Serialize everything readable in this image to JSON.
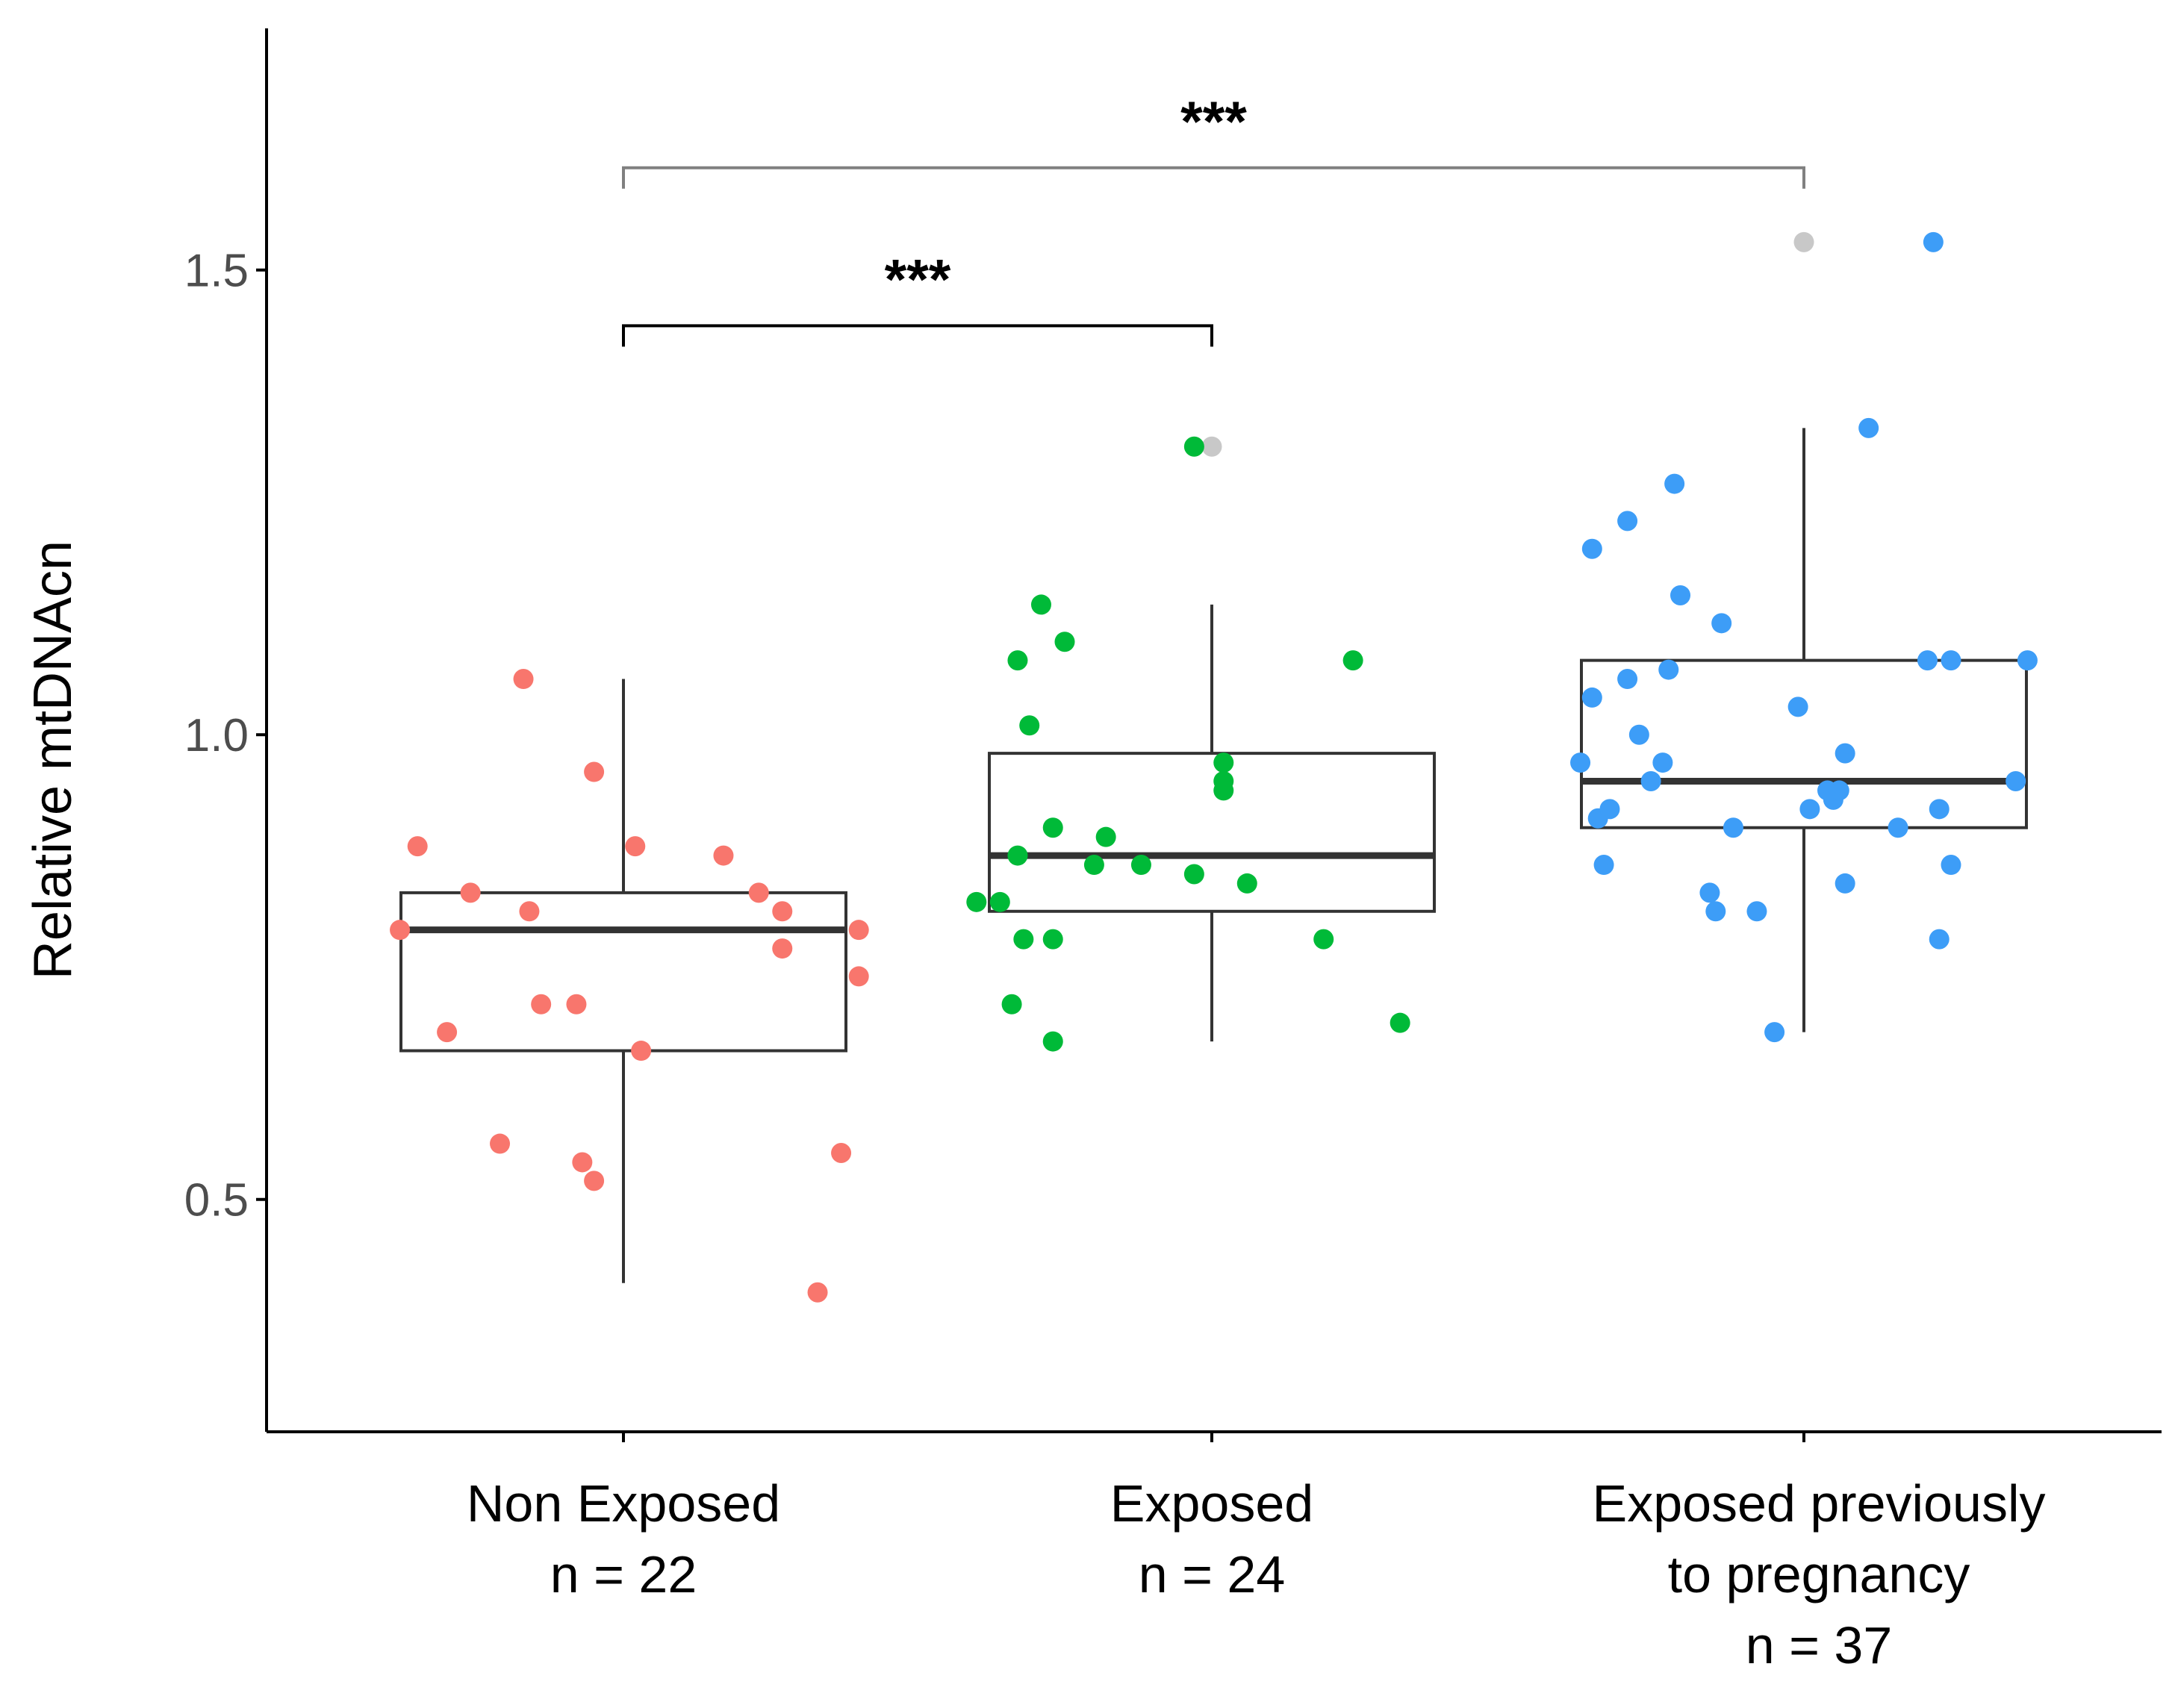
{
  "chart_data": {
    "type": "boxplot",
    "title": "",
    "xlabel": "",
    "ylabel": "Relative mtDNAcn",
    "ylim": [
      0.25,
      1.76
    ],
    "yticks": [
      0.5,
      1.0,
      1.5
    ],
    "ytick_labels": [
      "0.5",
      "1.0",
      "1.5"
    ],
    "grid": false,
    "legend": "none",
    "groups": [
      {
        "name": "Non Exposed",
        "n_label": "n = 22",
        "label_lines": [
          "Non Exposed",
          "n = 22"
        ],
        "color": "#F8766D",
        "box": {
          "q1": 0.66,
          "median": 0.79,
          "q3": 0.83,
          "whisker_low": 0.41,
          "whisker_high": 1.06
        },
        "outliers": [],
        "points": [
          {
            "dx": -0.38,
            "y": 0.79
          },
          {
            "dx": -0.35,
            "y": 0.88
          },
          {
            "dx": -0.3,
            "y": 0.68
          },
          {
            "dx": -0.26,
            "y": 0.83
          },
          {
            "dx": -0.21,
            "y": 0.56
          },
          {
            "dx": -0.16,
            "y": 0.81
          },
          {
            "dx": -0.17,
            "y": 1.06
          },
          {
            "dx": -0.14,
            "y": 0.71
          },
          {
            "dx": -0.08,
            "y": 0.71
          },
          {
            "dx": -0.07,
            "y": 0.54
          },
          {
            "dx": -0.05,
            "y": 0.52
          },
          {
            "dx": -0.05,
            "y": 0.96
          },
          {
            "dx": 0.02,
            "y": 0.88
          },
          {
            "dx": 0.03,
            "y": 0.66
          },
          {
            "dx": 0.17,
            "y": 0.87
          },
          {
            "dx": 0.23,
            "y": 0.83
          },
          {
            "dx": 0.27,
            "y": 0.81
          },
          {
            "dx": 0.27,
            "y": 0.77
          },
          {
            "dx": 0.33,
            "y": 0.4
          },
          {
            "dx": 0.37,
            "y": 0.55
          },
          {
            "dx": 0.4,
            "y": 0.79
          },
          {
            "dx": 0.4,
            "y": 0.74
          }
        ]
      },
      {
        "name": "Exposed",
        "n_label": "n = 24",
        "label_lines": [
          "Exposed",
          "n = 24"
        ],
        "color": "#00BA38",
        "box": {
          "q1": 0.81,
          "median": 0.87,
          "q3": 0.98,
          "whisker_low": 0.67,
          "whisker_high": 1.14
        },
        "outliers": [
          1.31
        ],
        "points": [
          {
            "dx": -0.4,
            "y": 0.82
          },
          {
            "dx": -0.36,
            "y": 0.82
          },
          {
            "dx": -0.34,
            "y": 0.71
          },
          {
            "dx": -0.33,
            "y": 0.87
          },
          {
            "dx": -0.33,
            "y": 1.08
          },
          {
            "dx": -0.32,
            "y": 0.78
          },
          {
            "dx": -0.31,
            "y": 1.01
          },
          {
            "dx": -0.29,
            "y": 1.14
          },
          {
            "dx": -0.27,
            "y": 0.67
          },
          {
            "dx": -0.27,
            "y": 0.9
          },
          {
            "dx": -0.27,
            "y": 0.78
          },
          {
            "dx": -0.25,
            "y": 1.1
          },
          {
            "dx": -0.2,
            "y": 0.86
          },
          {
            "dx": -0.18,
            "y": 0.89
          },
          {
            "dx": -0.12,
            "y": 0.86
          },
          {
            "dx": -0.03,
            "y": 0.85
          },
          {
            "dx": -0.03,
            "y": 1.31
          },
          {
            "dx": 0.02,
            "y": 0.95
          },
          {
            "dx": 0.02,
            "y": 0.94
          },
          {
            "dx": 0.02,
            "y": 0.97
          },
          {
            "dx": 0.06,
            "y": 0.84
          },
          {
            "dx": 0.19,
            "y": 0.78
          },
          {
            "dx": 0.24,
            "y": 1.08
          },
          {
            "dx": 0.32,
            "y": 0.69
          }
        ]
      },
      {
        "name": "Exposed previously to pregnancy",
        "n_label": "n = 37",
        "label_lines": [
          "Exposed previously",
          "to pregnancy",
          "n = 37"
        ],
        "color": "#3D9DF7",
        "box": {
          "q1": 0.9,
          "median": 0.95,
          "q3": 1.08,
          "whisker_low": 0.68,
          "whisker_high": 1.33
        },
        "outliers": [
          1.53
        ],
        "points": [
          {
            "dx": -0.38,
            "y": 0.97
          },
          {
            "dx": -0.36,
            "y": 1.2
          },
          {
            "dx": -0.36,
            "y": 1.04
          },
          {
            "dx": -0.35,
            "y": 0.91
          },
          {
            "dx": -0.34,
            "y": 0.86
          },
          {
            "dx": -0.33,
            "y": 0.92
          },
          {
            "dx": -0.3,
            "y": 1.23
          },
          {
            "dx": -0.3,
            "y": 1.06
          },
          {
            "dx": -0.28,
            "y": 1.0
          },
          {
            "dx": -0.26,
            "y": 0.95
          },
          {
            "dx": -0.24,
            "y": 0.97
          },
          {
            "dx": -0.23,
            "y": 1.07
          },
          {
            "dx": -0.22,
            "y": 1.27
          },
          {
            "dx": -0.21,
            "y": 1.15
          },
          {
            "dx": -0.16,
            "y": 0.83
          },
          {
            "dx": -0.15,
            "y": 0.81
          },
          {
            "dx": -0.14,
            "y": 1.12
          },
          {
            "dx": -0.12,
            "y": 0.9
          },
          {
            "dx": -0.08,
            "y": 0.81
          },
          {
            "dx": -0.05,
            "y": 0.68
          },
          {
            "dx": -0.01,
            "y": 1.03
          },
          {
            "dx": 0.01,
            "y": 0.92
          },
          {
            "dx": 0.04,
            "y": 0.94
          },
          {
            "dx": 0.05,
            "y": 0.93
          },
          {
            "dx": 0.06,
            "y": 0.94
          },
          {
            "dx": 0.07,
            "y": 0.98
          },
          {
            "dx": 0.07,
            "y": 0.84
          },
          {
            "dx": 0.11,
            "y": 1.33
          },
          {
            "dx": 0.16,
            "y": 0.9
          },
          {
            "dx": 0.21,
            "y": 1.08
          },
          {
            "dx": 0.22,
            "y": 1.53
          },
          {
            "dx": 0.23,
            "y": 0.78
          },
          {
            "dx": 0.23,
            "y": 0.92
          },
          {
            "dx": 0.25,
            "y": 1.08
          },
          {
            "dx": 0.25,
            "y": 0.86
          },
          {
            "dx": 0.36,
            "y": 0.95
          },
          {
            "dx": 0.38,
            "y": 1.08
          }
        ]
      }
    ],
    "outlier_color": "#C8C8C8",
    "significance": [
      {
        "from": 0,
        "to": 1,
        "label": "***",
        "y": 1.44,
        "color": "#000000"
      },
      {
        "from": 0,
        "to": 2,
        "label": "***",
        "y": 1.61,
        "color": "#808080"
      }
    ]
  }
}
